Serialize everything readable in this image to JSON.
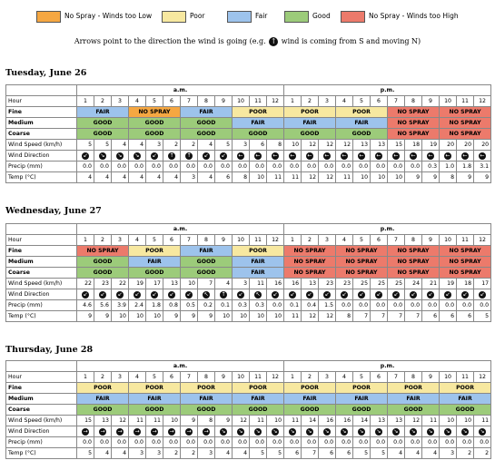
{
  "legend": [
    {
      "label": "No Spray - Winds too Low",
      "color": "#f5a742"
    },
    {
      "label": "Poor",
      "color": "#f7e8a0"
    },
    {
      "label": "Fair",
      "color": "#9dc3ec"
    },
    {
      "label": "Good",
      "color": "#9ccb7a"
    },
    {
      "label": "No Spray - Winds too High",
      "color": "#ec7a6b"
    }
  ],
  "arrow_note": {
    "before": "Arrows point to the direction the wind is going (e.g.",
    "example_glyph": "↑",
    "after": "wind is coming from S and moving N)"
  },
  "labels": {
    "am": "a.m.",
    "pm": "p.m.",
    "hour": "Hour",
    "fine": "Fine",
    "medium": "Medium",
    "coarse": "Coarse",
    "wind_speed": "Wind Speed (km/h)",
    "wind_direction": "Wind Direction",
    "precip": "Precip (mm)",
    "temp": "Temp (°C)"
  },
  "categories": {
    "L": {
      "text": "NO SPRAY",
      "color": "#f5a742"
    },
    "P": {
      "text": "POOR",
      "color": "#f7e8a0"
    },
    "F": {
      "text": "FAIR",
      "color": "#9dc3ec"
    },
    "G": {
      "text": "GOOD",
      "color": "#9ccb7a"
    },
    "H": {
      "text": "NO SPRAY",
      "color": "#ec7a6b"
    }
  },
  "hours": [
    "1",
    "2",
    "3",
    "4",
    "5",
    "6",
    "7",
    "8",
    "9",
    "10",
    "11",
    "12",
    "1",
    "2",
    "3",
    "4",
    "5",
    "6",
    "7",
    "8",
    "9",
    "10",
    "11",
    "12"
  ],
  "days": [
    {
      "title": "Tuesday, June 26",
      "fine": [
        [
          "F",
          3
        ],
        [
          "L",
          3
        ],
        [
          "F",
          3
        ],
        [
          "P",
          3
        ],
        [
          "P",
          3
        ],
        [
          "P",
          3
        ],
        [
          "H",
          3
        ],
        [
          "H",
          3
        ]
      ],
      "medium": [
        [
          "G",
          3
        ],
        [
          "G",
          3
        ],
        [
          "G",
          3
        ],
        [
          "F",
          3
        ],
        [
          "F",
          3
        ],
        [
          "F",
          3
        ],
        [
          "H",
          3
        ],
        [
          "H",
          3
        ]
      ],
      "coarse": [
        [
          "G",
          3
        ],
        [
          "G",
          3
        ],
        [
          "G",
          3
        ],
        [
          "G",
          3
        ],
        [
          "G",
          3
        ],
        [
          "G",
          3
        ],
        [
          "H",
          3
        ],
        [
          "H",
          3
        ]
      ],
      "wind_speed": [
        "5",
        "5",
        "4",
        "4",
        "3",
        "2",
        "2",
        "4",
        "5",
        "3",
        "6",
        "8",
        "10",
        "12",
        "12",
        "12",
        "13",
        "13",
        "15",
        "18",
        "19",
        "20",
        "20",
        "20"
      ],
      "wind_dir": [
        "↙",
        "↘",
        "↘",
        "↘",
        "↙",
        "↑",
        "↑",
        "↙",
        "↙",
        "←",
        "←",
        "←",
        "←",
        "←",
        "←",
        "←",
        "←",
        "←",
        "←",
        "←",
        "←",
        "←",
        "←",
        "←"
      ],
      "precip": [
        "0.0",
        "0.0",
        "0.0",
        "0.0",
        "0.0",
        "0.0",
        "0.0",
        "0.0",
        "0.0",
        "0.0",
        "0.0",
        "0.0",
        "0.0",
        "0.0",
        "0.0",
        "0.0",
        "0.0",
        "0.0",
        "0.0",
        "0.0",
        "0.3",
        "1.0",
        "1.8",
        "3.1"
      ],
      "temp": [
        "4",
        "4",
        "4",
        "4",
        "4",
        "4",
        "3",
        "4",
        "6",
        "8",
        "10",
        "11",
        "11",
        "12",
        "12",
        "11",
        "10",
        "10",
        "10",
        "9",
        "9",
        "8",
        "9",
        "9"
      ]
    },
    {
      "title": "Wednesday, June 27",
      "fine": [
        [
          "H",
          3
        ],
        [
          "P",
          3
        ],
        [
          "F",
          3
        ],
        [
          "P",
          3
        ],
        [
          "H",
          3
        ],
        [
          "H",
          3
        ],
        [
          "H",
          3
        ],
        [
          "H",
          3
        ]
      ],
      "medium": [
        [
          "G",
          3
        ],
        [
          "F",
          3
        ],
        [
          "G",
          3
        ],
        [
          "F",
          3
        ],
        [
          "H",
          3
        ],
        [
          "H",
          3
        ],
        [
          "H",
          3
        ],
        [
          "H",
          3
        ]
      ],
      "coarse": [
        [
          "G",
          3
        ],
        [
          "G",
          3
        ],
        [
          "G",
          3
        ],
        [
          "F",
          3
        ],
        [
          "H",
          3
        ],
        [
          "H",
          3
        ],
        [
          "H",
          3
        ],
        [
          "H",
          3
        ]
      ],
      "wind_speed": [
        "22",
        "23",
        "22",
        "19",
        "17",
        "13",
        "10",
        "7",
        "4",
        "3",
        "11",
        "16",
        "16",
        "13",
        "23",
        "23",
        "25",
        "25",
        "25",
        "24",
        "21",
        "19",
        "18",
        "17"
      ],
      "wind_dir": [
        "↙",
        "↙",
        "↙",
        "↙",
        "↙",
        "↙",
        "↙",
        "↖",
        "↑",
        "↙",
        "↖",
        "↙",
        "↙",
        "↙",
        "↙",
        "↙",
        "↙",
        "↙",
        "↙",
        "↙",
        "↙",
        "↙",
        "↙",
        "↙"
      ],
      "precip": [
        "4.6",
        "5.6",
        "3.9",
        "2.4",
        "1.8",
        "0.8",
        "0.5",
        "0.2",
        "0.1",
        "0.3",
        "0.3",
        "0.0",
        "0.1",
        "0.4",
        "1.5",
        "0.0",
        "0.0",
        "0.0",
        "0.0",
        "0.0",
        "0.0",
        "0.0",
        "0.0",
        "0.0"
      ],
      "temp": [
        "9",
        "9",
        "10",
        "10",
        "10",
        "9",
        "9",
        "9",
        "10",
        "10",
        "10",
        "10",
        "11",
        "12",
        "12",
        "8",
        "7",
        "7",
        "7",
        "7",
        "6",
        "6",
        "6",
        "5"
      ]
    },
    {
      "title": "Thursday, June 28",
      "fine": [
        [
          "P",
          3
        ],
        [
          "P",
          3
        ],
        [
          "P",
          3
        ],
        [
          "P",
          3
        ],
        [
          "P",
          3
        ],
        [
          "P",
          3
        ],
        [
          "P",
          3
        ],
        [
          "P",
          3
        ]
      ],
      "medium": [
        [
          "F",
          3
        ],
        [
          "F",
          3
        ],
        [
          "F",
          3
        ],
        [
          "F",
          3
        ],
        [
          "F",
          3
        ],
        [
          "F",
          3
        ],
        [
          "F",
          3
        ],
        [
          "F",
          3
        ]
      ],
      "coarse": [
        [
          "G",
          3
        ],
        [
          "G",
          3
        ],
        [
          "G",
          3
        ],
        [
          "G",
          3
        ],
        [
          "G",
          3
        ],
        [
          "G",
          3
        ],
        [
          "G",
          3
        ],
        [
          "G",
          3
        ]
      ],
      "wind_speed": [
        "15",
        "13",
        "12",
        "11",
        "11",
        "10",
        "9",
        "8",
        "9",
        "12",
        "11",
        "10",
        "11",
        "14",
        "16",
        "16",
        "14",
        "13",
        "13",
        "12",
        "11",
        "10",
        "10",
        "11"
      ],
      "wind_dir": [
        "→",
        "→",
        "→",
        "→",
        "→",
        "→",
        "→",
        "→",
        "↘",
        "↘",
        "↘",
        "↘",
        "↘",
        "↘",
        "↘",
        "↘",
        "↘",
        "↘",
        "↘",
        "↘",
        "↘",
        "↘",
        "↘",
        "↘"
      ],
      "precip": [
        "0.0",
        "0.0",
        "0.0",
        "0.0",
        "0.0",
        "0.0",
        "0.0",
        "0.0",
        "0.0",
        "0.0",
        "0.0",
        "0.0",
        "0.0",
        "0.0",
        "0.0",
        "0.0",
        "0.0",
        "0.0",
        "0.0",
        "0.0",
        "0.0",
        "0.0",
        "0.0",
        "0.0"
      ],
      "temp": [
        "5",
        "4",
        "4",
        "3",
        "3",
        "2",
        "2",
        "3",
        "4",
        "4",
        "5",
        "5",
        "6",
        "7",
        "6",
        "6",
        "5",
        "5",
        "4",
        "4",
        "4",
        "3",
        "2",
        "2"
      ]
    }
  ]
}
